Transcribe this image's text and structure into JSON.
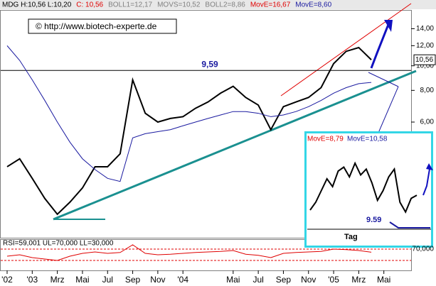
{
  "chart_data": {
    "type": "line",
    "header": [
      {
        "text": "MDG H:10,56 L:10,20",
        "color": "#000000"
      },
      {
        "text": "C: 10,56",
        "color": "#e00000"
      },
      {
        "text": "BOLL1=12,17",
        "color": "#808080"
      },
      {
        "text": "MOVS=10,52",
        "color": "#808080"
      },
      {
        "text": "BOLL2=8,86",
        "color": "#808080"
      },
      {
        "text": "MovE=16,67",
        "color": "#e00000"
      },
      {
        "text": "MovE=8,60",
        "color": "#1a1aa0"
      }
    ],
    "watermark": "© http://www.biotech-experte.de",
    "x": [
      "2002-11",
      "2002-12",
      "2003-01",
      "2003-02",
      "2003-03",
      "2003-04",
      "2003-05",
      "2003-06",
      "2003-07",
      "2003-08",
      "2003-09",
      "2003-10",
      "2003-11",
      "2003-12",
      "2004-01",
      "2004-02",
      "2004-03",
      "2004-04",
      "2004-05",
      "2004-06",
      "2004-07",
      "2004-08",
      "2004-09",
      "2004-10",
      "2004-11",
      "2004-12",
      "2005-01",
      "2005-02",
      "2005-03",
      "2005-04"
    ],
    "series": [
      {
        "color": "#000000",
        "values": [
          4.0,
          4.3,
          3.6,
          3.0,
          2.6,
          2.9,
          3.3,
          4.0,
          4.0,
          4.5,
          8.8,
          6.5,
          6.0,
          6.2,
          6.3,
          6.8,
          7.2,
          7.8,
          8.3,
          7.5,
          7.0,
          5.6,
          6.9,
          7.2,
          7.5,
          8.2,
          10.2,
          11.4,
          11.8,
          10.56
        ]
      },
      {
        "color": "#1a1aa0",
        "values": [
          12.0,
          10.5,
          8.8,
          7.3,
          6.0,
          5.0,
          4.3,
          3.9,
          3.6,
          3.5,
          5.2,
          5.4,
          5.5,
          5.6,
          5.8,
          6.0,
          6.2,
          6.4,
          6.6,
          6.6,
          6.5,
          6.3,
          6.4,
          6.6,
          6.9,
          7.3,
          7.8,
          8.2,
          8.5,
          8.6
        ]
      }
    ],
    "last_price": {
      "value": 10.56,
      "label": "10,56"
    },
    "resistance": {
      "value": 9.59,
      "label": "9,59"
    },
    "xlim": [
      "2002-11",
      "2005-07"
    ],
    "xticks": [
      {
        "value": "2002-11",
        "label": "'02"
      },
      {
        "value": "2003-01",
        "label": "'03"
      },
      {
        "value": "2003-03",
        "label": "Mrz"
      },
      {
        "value": "2003-05",
        "label": "Mai"
      },
      {
        "value": "2003-07",
        "label": "Jul"
      },
      {
        "value": "2003-09",
        "label": "Sep"
      },
      {
        "value": "2003-11",
        "label": "Nov"
      },
      {
        "value": "2004-01",
        "label": "'04"
      },
      {
        "value": "2004-05",
        "label": "Mai"
      },
      {
        "value": "2004-07",
        "label": "Jul"
      },
      {
        "value": "2004-09",
        "label": "Sep"
      },
      {
        "value": "2004-11",
        "label": "Nov"
      },
      {
        "value": "2005-01",
        "label": "'05"
      },
      {
        "value": "2005-03",
        "label": "Mrz"
      },
      {
        "value": "2005-05",
        "label": "Mai"
      }
    ],
    "log_scale": true,
    "ylim": [
      2.1,
      16.6
    ],
    "yticks": [
      {
        "value": 14,
        "label": "14,00"
      },
      {
        "value": 12,
        "label": "12,00"
      },
      {
        "value": 10,
        "label": "10,00"
      },
      {
        "value": 8,
        "label": "8,00"
      },
      {
        "value": 6,
        "label": "6,00"
      }
    ],
    "rsi": {
      "label": "RSI=59,001 UL=70,000 LL=30,000",
      "color": "#e00000",
      "ylim": [
        0,
        100
      ],
      "yticks": [
        {
          "value": 70,
          "label": "70,000"
        }
      ],
      "bands": [
        70,
        30
      ],
      "values": [
        45,
        50,
        40,
        35,
        30,
        45,
        55,
        60,
        55,
        58,
        85,
        55,
        50,
        52,
        55,
        58,
        60,
        62,
        65,
        52,
        48,
        40,
        55,
        58,
        60,
        62,
        70,
        68,
        65,
        59
      ]
    },
    "inset": {
      "labels": [
        {
          "text": "MovE=8,79",
          "color": "#e00000"
        },
        {
          "text": "MovE=10,58",
          "color": "#1a1aa0"
        }
      ],
      "level_label": "9.59",
      "period_label": "Tag",
      "ylim": [
        9,
        13
      ],
      "values": [
        9.8,
        10.2,
        10.8,
        11.4,
        11.0,
        11.8,
        12.0,
        11.5,
        12.2,
        11.6,
        11.9,
        11.2,
        10.3,
        10.8,
        11.5,
        11.9,
        10.2,
        9.7,
        10.4,
        10.56
      ],
      "color": "#000000"
    }
  }
}
